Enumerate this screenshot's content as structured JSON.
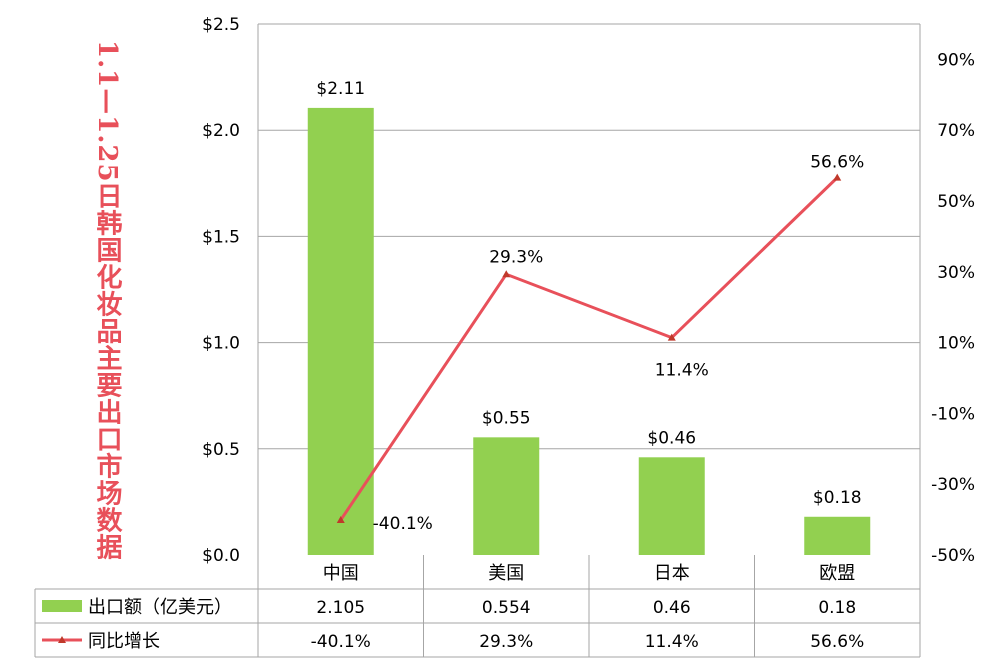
{
  "chart_data": {
    "type": "bar",
    "title": "1.1—1.25日韩国化妆品主要出口市场数据",
    "categories": [
      "中国",
      "美国",
      "日本",
      "欧盟"
    ],
    "series": [
      {
        "name": "出口额（亿美元）",
        "kind": "bar",
        "axis": "left",
        "values": [
          2.105,
          0.554,
          0.46,
          0.18
        ],
        "data_labels": [
          "$2.11",
          "$0.55",
          "$0.46",
          "$0.18"
        ],
        "table_values": [
          "2.105",
          "0.554",
          "0.46",
          "0.18"
        ],
        "color": "#92d050"
      },
      {
        "name": "同比增长",
        "kind": "line",
        "axis": "right",
        "values": [
          -40.1,
          29.3,
          11.4,
          56.6
        ],
        "data_labels": [
          "-40.1%",
          "29.3%",
          "11.4%",
          "56.6%"
        ],
        "table_values": [
          "-40.1%",
          "29.3%",
          "11.4%",
          "56.6%"
        ],
        "color": "#e8505a"
      }
    ],
    "y_left": {
      "range": [
        0,
        2.5
      ],
      "ticks": [
        0,
        0.5,
        1.0,
        1.5,
        2.0,
        2.5
      ],
      "tick_labels": [
        "$0.0",
        "$0.5",
        "$1.0",
        "$1.5",
        "$2.0",
        "$2.5"
      ]
    },
    "y_right": {
      "range": [
        -50,
        100
      ],
      "ticks": [
        -50,
        -30,
        -10,
        10,
        30,
        50,
        70,
        90
      ],
      "tick_labels": [
        "-50%",
        "-30%",
        "-10%",
        "10%",
        "30%",
        "50%",
        "70%",
        "90%"
      ]
    },
    "grid": true,
    "legend": "data-table"
  }
}
